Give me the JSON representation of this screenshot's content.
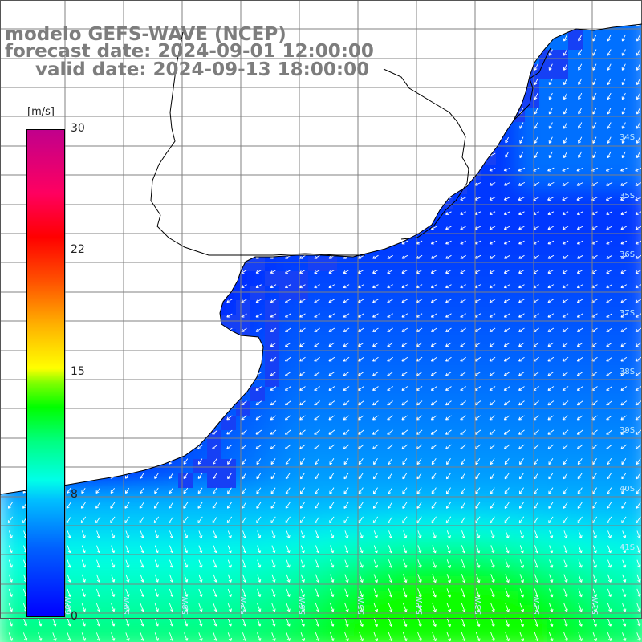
{
  "title": {
    "line1": "modelo GEFS-WAVE (NCEP)",
    "line2": "forecast date: 2024-09-01 12:00:00",
    "line3": "valid date: 2024-09-13 18:00:00"
  },
  "colorbar": {
    "units": "[m/s]",
    "ticks": [
      "30",
      "22",
      "15",
      "8",
      "0"
    ],
    "tick_values": [
      30,
      22,
      15,
      8,
      0
    ],
    "colors": {
      "min": "#0000ff",
      "low": "#00c0ff",
      "mid_low": "#00ffe8",
      "mid": "#00ff00",
      "mid_high": "#ffff00",
      "high": "#ff0000",
      "max": "#c0008c"
    }
  },
  "map": {
    "land_color": "#ffffff",
    "coastline_color": "#000000",
    "grid_color": "#808080",
    "latitude_labels": [
      "34S",
      "35S",
      "36S",
      "37S",
      "38S",
      "39S",
      "40S",
      "41S"
    ],
    "longitude_labels": [
      "60W",
      "59W",
      "58W",
      "57W",
      "56W",
      "55W",
      "54W",
      "53W",
      "52W",
      "51W"
    ],
    "wind_speed_range": [
      0,
      13
    ]
  }
}
